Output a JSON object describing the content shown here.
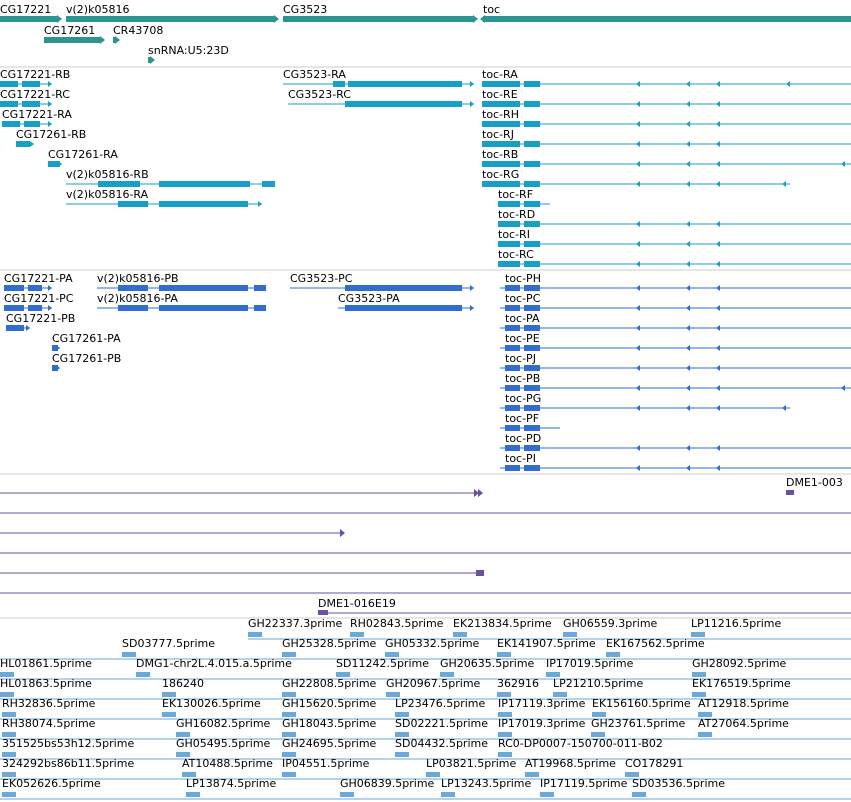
{
  "colors": {
    "gene": "#2c9491",
    "transcript": "#16a0c4",
    "cds": "#2f6dd0",
    "clone": "#6a4fa3",
    "est": "#6aa9d9",
    "separator": "#cccccc"
  },
  "tracks": {
    "genes": [
      {
        "name": "CG17221",
        "row": 0
      },
      {
        "name": "v(2)k05816",
        "row": 0
      },
      {
        "name": "CG3523",
        "row": 0
      },
      {
        "name": "toc",
        "row": 0
      },
      {
        "name": "CG17261",
        "row": 1
      },
      {
        "name": "CR43708",
        "row": 1
      },
      {
        "name": "snRNA:U5:23D",
        "row": 2
      }
    ],
    "transcripts": [
      {
        "name": "CG17221-RB"
      },
      {
        "name": "CG3523-RA"
      },
      {
        "name": "toc-RA"
      },
      {
        "name": "CG17221-RC"
      },
      {
        "name": "CG3523-RC"
      },
      {
        "name": "toc-RE"
      },
      {
        "name": "CG17221-RA"
      },
      {
        "name": "toc-RH"
      },
      {
        "name": "CG17261-RB"
      },
      {
        "name": "toc-RJ"
      },
      {
        "name": "CG17261-RA"
      },
      {
        "name": "toc-RB"
      },
      {
        "name": "v(2)k05816-RB"
      },
      {
        "name": "toc-RG"
      },
      {
        "name": "v(2)k05816-RA"
      },
      {
        "name": "toc-RF"
      },
      {
        "name": "toc-RD"
      },
      {
        "name": "toc-RI"
      },
      {
        "name": "toc-RC"
      }
    ],
    "proteins": [
      {
        "name": "CG17221-PA"
      },
      {
        "name": "v(2)k05816-PB"
      },
      {
        "name": "CG3523-PC"
      },
      {
        "name": "toc-PH"
      },
      {
        "name": "CG17221-PC"
      },
      {
        "name": "v(2)k05816-PA"
      },
      {
        "name": "CG3523-PA"
      },
      {
        "name": "toc-PC"
      },
      {
        "name": "CG17221-PB"
      },
      {
        "name": "toc-PA"
      },
      {
        "name": "CG17261-PA"
      },
      {
        "name": "toc-PE"
      },
      {
        "name": "CG17261-PB"
      },
      {
        "name": "toc-PJ"
      },
      {
        "name": "toc-PB"
      },
      {
        "name": "toc-PG"
      },
      {
        "name": "toc-PF"
      },
      {
        "name": "toc-PD"
      },
      {
        "name": "toc-PI"
      }
    ],
    "clones": [
      {
        "name": "DME1-003"
      },
      {
        "name": "DME1-016E19"
      }
    ],
    "ests": [
      {
        "name": "GH22337.3prime"
      },
      {
        "name": "RH02843.5prime"
      },
      {
        "name": "EK213834.5prime"
      },
      {
        "name": "GH06559.3prime"
      },
      {
        "name": "LP11216.5prime"
      },
      {
        "name": "SD03777.5prime"
      },
      {
        "name": "GH25328.5prime"
      },
      {
        "name": "GH05332.5prime"
      },
      {
        "name": "EK141907.5prime"
      },
      {
        "name": "EK167562.5prime"
      },
      {
        "name": "HL01861.5prime"
      },
      {
        "name": "DMG1-chr2L.4.015.a.5prime"
      },
      {
        "name": "SD11242.5prime"
      },
      {
        "name": "GH20635.5prime"
      },
      {
        "name": "IP17019.5prime"
      },
      {
        "name": "GH28092.5prime"
      },
      {
        "name": "HL01863.5prime"
      },
      {
        "name": "186240"
      },
      {
        "name": "GH22808.5prime"
      },
      {
        "name": "GH20967.5prime"
      },
      {
        "name": "362916"
      },
      {
        "name": "LP21210.5prime"
      },
      {
        "name": "EK176519.5prime"
      },
      {
        "name": "RH32836.5prime"
      },
      {
        "name": "EK130026.5prime"
      },
      {
        "name": "GH15620.5prime"
      },
      {
        "name": "LP23476.5prime"
      },
      {
        "name": "IP17119.3prime"
      },
      {
        "name": "EK156160.5prime"
      },
      {
        "name": "AT12918.5prime"
      },
      {
        "name": "RH38074.5prime"
      },
      {
        "name": "GH16082.5prime"
      },
      {
        "name": "GH18043.5prime"
      },
      {
        "name": "SD02221.5prime"
      },
      {
        "name": "IP17019.3prime"
      },
      {
        "name": "GH23761.5prime"
      },
      {
        "name": "AT27064.5prime"
      },
      {
        "name": "351525bs53h12.5prime"
      },
      {
        "name": "GH05495.5prime"
      },
      {
        "name": "GH24695.5prime"
      },
      {
        "name": "SD04432.5prime"
      },
      {
        "name": "RC0-DP0007-150700-011-B02"
      },
      {
        "name": "324292bs86b11.5prime"
      },
      {
        "name": "AT10488.5prime"
      },
      {
        "name": "IP04551.5prime"
      },
      {
        "name": "LP03821.5prime"
      },
      {
        "name": "AT19968.5prime"
      },
      {
        "name": "CO178291"
      },
      {
        "name": "EK052626.5prime"
      },
      {
        "name": "LP13874.5prime"
      },
      {
        "name": "GH06839.5prime"
      },
      {
        "name": "LP13243.5prime"
      },
      {
        "name": "IP17119.5prime"
      },
      {
        "name": "SD03536.5prime"
      }
    ]
  }
}
